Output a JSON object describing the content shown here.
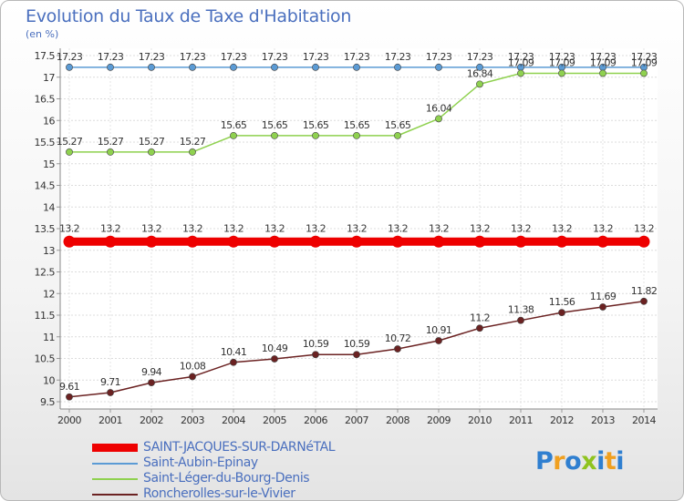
{
  "title": "Evolution du Taux de Taxe d'Habitation",
  "subtitle": "(en %)",
  "brand": {
    "letters": [
      "P",
      "r",
      "o",
      "x",
      "i",
      "t",
      "i"
    ],
    "colors": [
      "#2f7fd0",
      "#f0a020",
      "#2f7fd0",
      "#8fc31f",
      "#2f7fd0",
      "#f0a020",
      "#2f7fd0"
    ]
  },
  "chart_data": {
    "type": "line",
    "x": [
      "2000",
      "2001",
      "2002",
      "2003",
      "2004",
      "2005",
      "2006",
      "2007",
      "2008",
      "2009",
      "2010",
      "2011",
      "2012",
      "2013",
      "2014"
    ],
    "ylim": [
      9.5,
      17.5
    ],
    "yticks": [
      "9.5",
      "10",
      "10.5",
      "11",
      "11.5",
      "12",
      "12.5",
      "13",
      "13.5",
      "14",
      "14.5",
      "15",
      "15.5",
      "16",
      "16.5",
      "17",
      "17.5"
    ],
    "grid": true,
    "legend_position": "bottom-left",
    "series": [
      {
        "name": "SAINT-JACQUES-SUR-DARNéTAL",
        "color": "#ee0000",
        "emphasis": true,
        "values": [
          13.2,
          13.2,
          13.2,
          13.2,
          13.2,
          13.2,
          13.2,
          13.2,
          13.2,
          13.2,
          13.2,
          13.2,
          13.2,
          13.2,
          13.2
        ],
        "labels": [
          "13.2",
          "13.2",
          "13.2",
          "13.2",
          "13.2",
          "13.2",
          "13.2",
          "13.2",
          "13.2",
          "13.2",
          "13.2",
          "13.2",
          "13.2",
          "13.2",
          "13.2"
        ]
      },
      {
        "name": "Saint-Aubin-Epinay",
        "color": "#5b9bd5",
        "emphasis": false,
        "values": [
          17.23,
          17.23,
          17.23,
          17.23,
          17.23,
          17.23,
          17.23,
          17.23,
          17.23,
          17.23,
          17.23,
          17.23,
          17.23,
          17.23,
          17.23
        ],
        "labels": [
          "17.23",
          "17.23",
          "17.23",
          "17.23",
          "17.23",
          "17.23",
          "17.23",
          "17.23",
          "17.23",
          "17.23",
          "17.23",
          "17.23",
          "17.23",
          "17.23",
          "17.23"
        ]
      },
      {
        "name": "Saint-Léger-du-Bourg-Denis",
        "color": "#8fd14f",
        "emphasis": false,
        "values": [
          15.27,
          15.27,
          15.27,
          15.27,
          15.65,
          15.65,
          15.65,
          15.65,
          15.65,
          16.04,
          16.84,
          17.09,
          17.09,
          17.09,
          17.09
        ],
        "labels": [
          "15.27",
          "15.27",
          "15.27",
          "15.27",
          "15.65",
          "15.65",
          "15.65",
          "15.65",
          "15.65",
          "16.04",
          "16.84",
          "17.09",
          "17.09",
          "17.09",
          "17.09"
        ]
      },
      {
        "name": "Roncherolles-sur-le-Vivier",
        "color": "#6b2222",
        "emphasis": false,
        "values": [
          9.61,
          9.71,
          9.94,
          10.08,
          10.41,
          10.49,
          10.59,
          10.59,
          10.72,
          10.91,
          11.2,
          11.38,
          11.56,
          11.69,
          11.82
        ],
        "labels": [
          "9.61",
          "9.71",
          "9.94",
          "10.08",
          "10.41",
          "10.49",
          "10.59",
          "10.59",
          "10.72",
          "10.91",
          "11.2",
          "11.38",
          "11.56",
          "11.69",
          "11.82"
        ]
      }
    ]
  }
}
